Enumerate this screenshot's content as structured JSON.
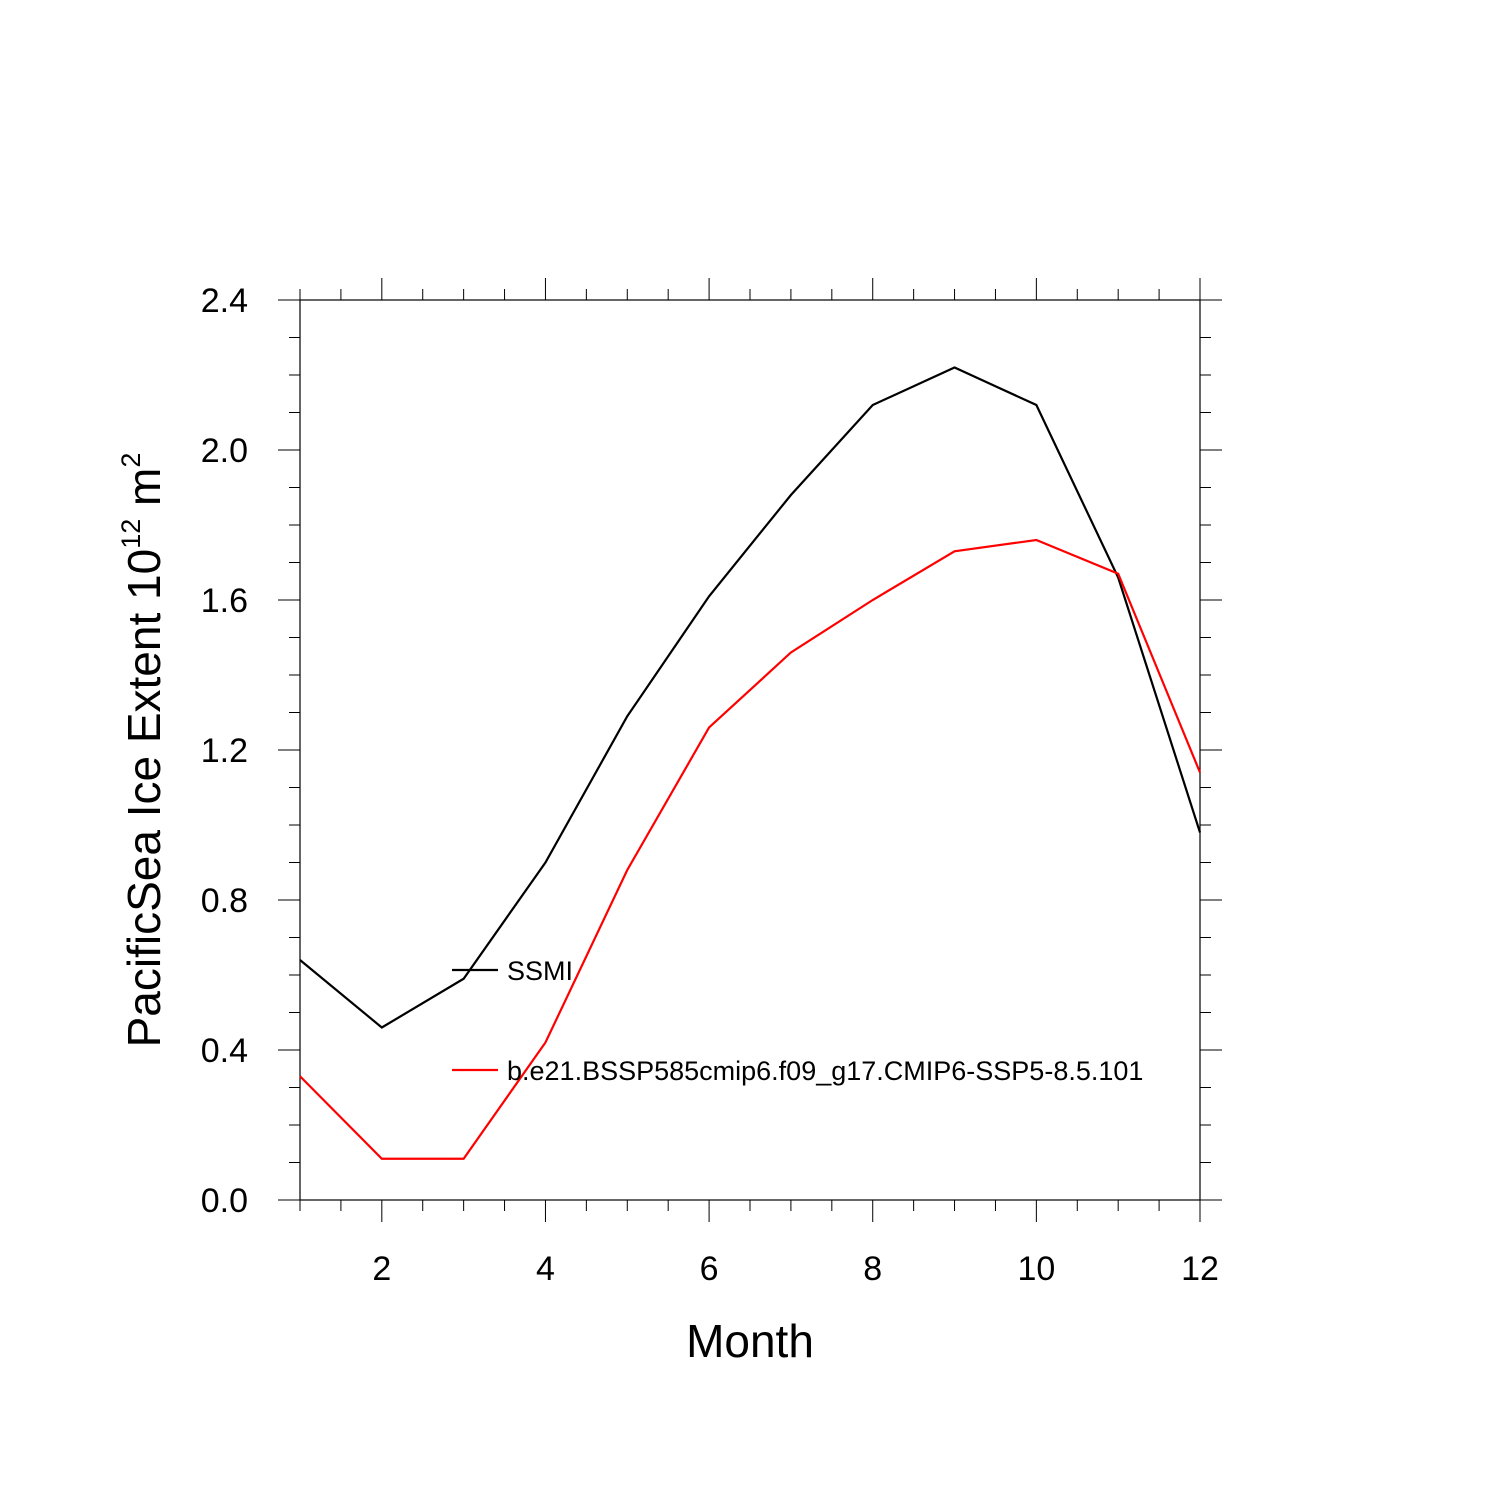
{
  "chart_data": {
    "type": "line",
    "title": "",
    "xlabel": "Month",
    "ylabel": {
      "main": "PacificSea Ice Extent 10",
      "exponent": "12",
      "unit": " m",
      "unit_exponent": "2"
    },
    "xlim": [
      1,
      12
    ],
    "ylim": [
      0.0,
      2.4
    ],
    "x_ticks": [
      2,
      4,
      6,
      8,
      10,
      12
    ],
    "x_tick_labels": [
      "2",
      "4",
      "6",
      "8",
      "10",
      "12"
    ],
    "y_ticks": [
      0.0,
      0.4,
      0.8,
      1.2,
      1.6,
      2.0,
      2.4
    ],
    "y_tick_labels": [
      "0.0",
      "0.4",
      "0.8",
      "1.2",
      "1.6",
      "2.0",
      "2.4"
    ],
    "grid": false,
    "legend_placement": "inside-center-left",
    "x": [
      1,
      2,
      3,
      4,
      5,
      6,
      7,
      8,
      9,
      10,
      11,
      12
    ],
    "series": [
      {
        "name": "SSMI",
        "color": "#000000",
        "values": [
          0.64,
          0.46,
          0.59,
          0.9,
          1.29,
          1.61,
          1.88,
          2.12,
          2.22,
          2.12,
          1.66,
          0.98
        ]
      },
      {
        "name": "b.e21.BSSP585cmip6.f09_g17.CMIP6-SSP5-8.5.101",
        "color": "#ff0000",
        "values": [
          0.33,
          0.11,
          0.11,
          0.42,
          0.88,
          1.26,
          1.46,
          1.6,
          1.73,
          1.76,
          1.67,
          1.14
        ]
      }
    ]
  }
}
